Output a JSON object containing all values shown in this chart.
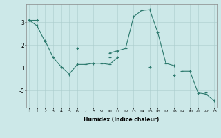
{
  "xlabel": "Humidex (Indice chaleur)",
  "background_color": "#cce8e8",
  "line_color": "#2d7a6e",
  "x_values": [
    0,
    1,
    2,
    3,
    4,
    5,
    6,
    7,
    8,
    9,
    10,
    11,
    12,
    13,
    14,
    15,
    16,
    17,
    18,
    19,
    20,
    21,
    22,
    23
  ],
  "line1": [
    3.1,
    3.1,
    null,
    null,
    null,
    null,
    null,
    null,
    null,
    null,
    1.65,
    1.75,
    1.85,
    3.25,
    3.52,
    3.55,
    2.55,
    1.2,
    1.1,
    null,
    null,
    null,
    null,
    null
  ],
  "line2": [
    null,
    null,
    2.2,
    1.45,
    1.05,
    0.72,
    1.15,
    1.15,
    1.2,
    1.2,
    1.15,
    1.45,
    null,
    null,
    null,
    null,
    null,
    null,
    null,
    0.85,
    0.85,
    -0.1,
    -0.15,
    -0.45
  ],
  "line3": [
    3.1,
    2.85,
    2.15,
    null,
    null,
    null,
    1.85,
    null,
    null,
    null,
    1.45,
    null,
    null,
    null,
    null,
    1.05,
    null,
    null,
    0.68,
    null,
    null,
    null,
    -0.08,
    null
  ],
  "ylim": [
    -0.75,
    3.8
  ],
  "xlim": [
    -0.3,
    23.3
  ],
  "yticks": [
    0,
    1,
    2,
    3
  ],
  "ytick_labels": [
    "-0",
    "1",
    "2",
    "3"
  ],
  "xticks": [
    0,
    1,
    2,
    3,
    4,
    5,
    6,
    7,
    8,
    9,
    10,
    11,
    12,
    13,
    14,
    15,
    16,
    17,
    18,
    19,
    20,
    21,
    22,
    23
  ]
}
